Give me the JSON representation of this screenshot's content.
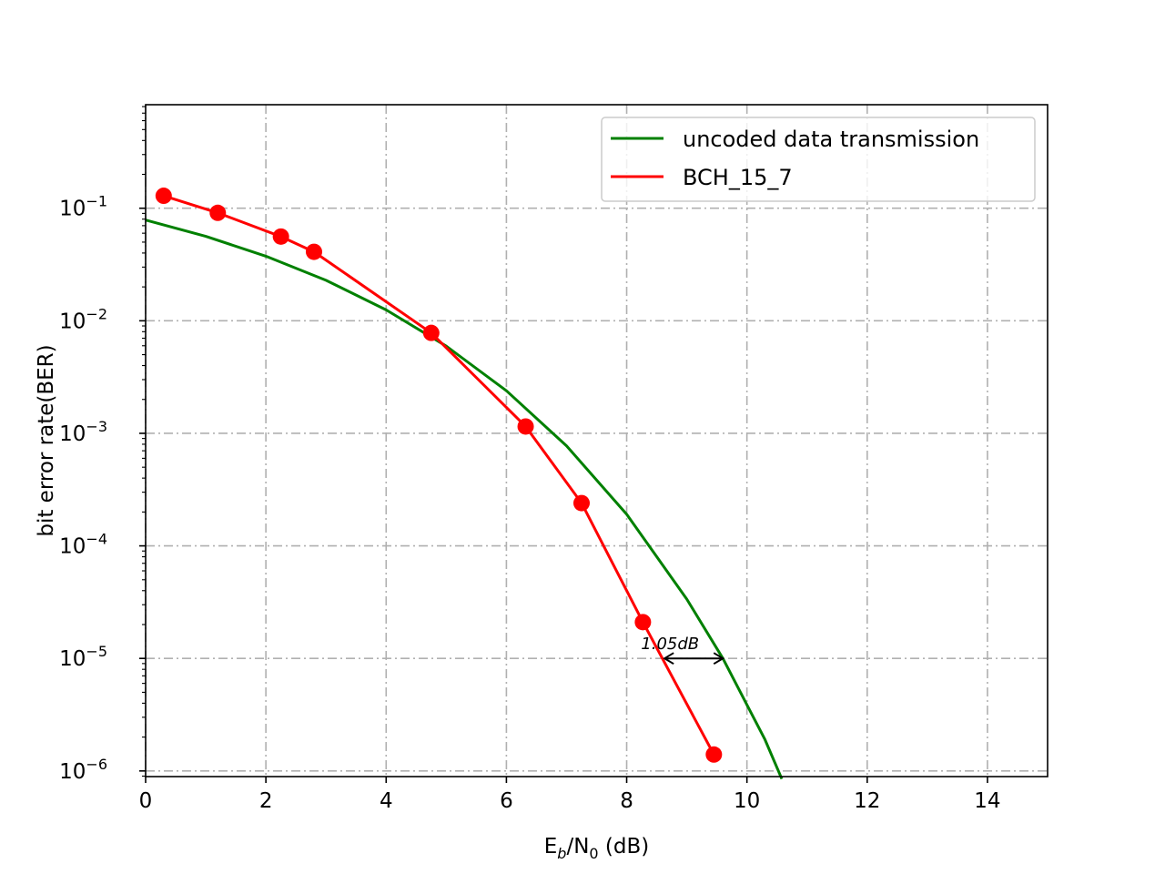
{
  "chart_data": {
    "type": "line",
    "title": "",
    "xlabel": {
      "main": "E",
      "sub1": "b",
      "mid": "/N",
      "sub2": "0",
      "tail": " (dB)"
    },
    "ylabel": "bit error rate(BER)",
    "xlim": [
      0,
      15
    ],
    "ylim_log10": [
      -6.05,
      -0.08
    ],
    "yscale": "log",
    "grid": true,
    "legend_position": "top-right",
    "x_ticks": [
      0,
      2,
      4,
      6,
      8,
      10,
      12,
      14
    ],
    "x_tick_labels": [
      "0",
      "2",
      "4",
      "6",
      "8",
      "10",
      "12",
      "14"
    ],
    "y_tick_exponents": [
      -1,
      -2,
      -3,
      -4,
      -5,
      -6
    ],
    "y_tick_labels": [
      {
        "base": "10",
        "exp": "−1"
      },
      {
        "base": "10",
        "exp": "−2"
      },
      {
        "base": "10",
        "exp": "−3"
      },
      {
        "base": "10",
        "exp": "−4"
      },
      {
        "base": "10",
        "exp": "−5"
      },
      {
        "base": "10",
        "exp": "−6"
      }
    ],
    "series": [
      {
        "name": "uncoded data transmission",
        "color": "#008000",
        "marker": "none",
        "x": [
          0.0,
          1.0,
          2.0,
          3.0,
          4.0,
          5.0,
          6.0,
          7.0,
          8.0,
          9.0,
          9.6,
          10.0,
          10.3,
          10.58
        ],
        "ber": [
          0.0786,
          0.0563,
          0.0375,
          0.0229,
          0.0125,
          0.00595,
          0.00239,
          0.000773,
          0.000191,
          3.36e-05,
          1e-05,
          3.87e-06,
          1.9e-06,
          8.5e-07
        ]
      },
      {
        "name": "BCH_15_7",
        "color": "#ff0000",
        "marker": "circle",
        "x": [
          0.3,
          1.2,
          2.25,
          2.8,
          4.75,
          6.32,
          7.25,
          8.27,
          9.45
        ],
        "ber": [
          0.129,
          0.091,
          0.056,
          0.041,
          0.0078,
          0.00115,
          0.00024,
          2.1e-05,
          1.4e-06
        ]
      }
    ],
    "annotation": {
      "text": "1.05dB",
      "x_from": 8.63,
      "x_to": 9.6,
      "ber": 1e-05
    }
  }
}
